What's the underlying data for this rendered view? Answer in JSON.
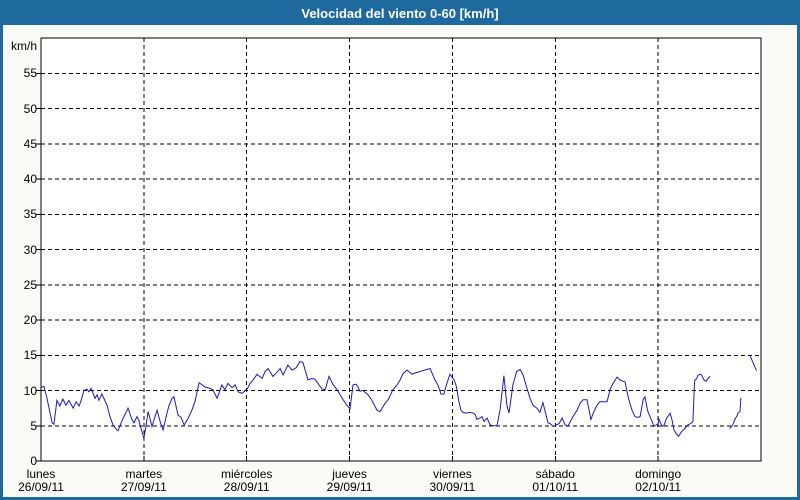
{
  "window": {
    "title": "Velocidad del viento 0-60 [km/h]",
    "title_bar_color": "#1e699e",
    "border_color": "#1e699e",
    "background_color": "#fafbf7"
  },
  "chart_data": {
    "type": "line",
    "title": "Velocidad del viento 0-60 [km/h]",
    "grid": "dashed",
    "legend": "none",
    "plot_background": "#ffffff",
    "grid_color": "#000000",
    "line_color": "#1b1abe",
    "y_axis": {
      "unit_label": "km/h",
      "min": 0,
      "max": 60,
      "tick_step": 5,
      "tick_labels": [
        0,
        5,
        10,
        15,
        20,
        25,
        30,
        35,
        40,
        45,
        50,
        55
      ]
    },
    "x_axis": {
      "range_hours": [
        0,
        168
      ],
      "days": [
        {
          "name": "lunes",
          "date": "26/09/11"
        },
        {
          "name": "martes",
          "date": "27/09/11"
        },
        {
          "name": "miércoles",
          "date": "28/09/11"
        },
        {
          "name": "jueves",
          "date": "29/09/11"
        },
        {
          "name": "viernes",
          "date": "30/09/11"
        },
        {
          "name": "sábado",
          "date": "01/10/11"
        },
        {
          "name": "domingo",
          "date": "02/10/11"
        }
      ]
    },
    "series": [
      {
        "name": "velocidad del viento",
        "points": [
          [
            0,
            10.4
          ],
          [
            0.7,
            10.6
          ],
          [
            1.4,
            8.9
          ],
          [
            2.6,
            5.4
          ],
          [
            3,
            5.2
          ],
          [
            3.7,
            8.6
          ],
          [
            4.4,
            7.8
          ],
          [
            5.1,
            8.8
          ],
          [
            5.8,
            7.9
          ],
          [
            6.5,
            8.6
          ],
          [
            7.5,
            7.5
          ],
          [
            8.2,
            8.4
          ],
          [
            8.9,
            7.8
          ],
          [
            9.3,
            8.5
          ],
          [
            10,
            10
          ],
          [
            10.7,
            10.2
          ],
          [
            11.2,
            9.8
          ],
          [
            11.7,
            10.3
          ],
          [
            12.6,
            8.9
          ],
          [
            13.1,
            9.4
          ],
          [
            13.5,
            8.6
          ],
          [
            14.2,
            9.5
          ],
          [
            15.4,
            7.9
          ],
          [
            16.1,
            6.3
          ],
          [
            16.8,
            5.1
          ],
          [
            17.7,
            4.4
          ],
          [
            18,
            4.3
          ],
          [
            18.7,
            5.4
          ],
          [
            19.1,
            6
          ],
          [
            20.1,
            7.2
          ],
          [
            20.3,
            7.5
          ],
          [
            21.2,
            5.9
          ],
          [
            21.7,
            5.4
          ],
          [
            22.4,
            6.3
          ],
          [
            22.9,
            5.7
          ],
          [
            23.1,
            5.1
          ],
          [
            24,
            3.2
          ],
          [
            24.5,
            5
          ],
          [
            25,
            7
          ],
          [
            25.7,
            5.4
          ],
          [
            25.9,
            4.9
          ],
          [
            26.6,
            6.3
          ],
          [
            27.1,
            7.2
          ],
          [
            27.8,
            5.6
          ],
          [
            28.5,
            4.4
          ],
          [
            29.4,
            6.8
          ],
          [
            29.9,
            7.9
          ],
          [
            30.6,
            8.9
          ],
          [
            31,
            9.1
          ],
          [
            32,
            6.5
          ],
          [
            32.7,
            6.2
          ],
          [
            33.4,
            5.1
          ],
          [
            34.3,
            6
          ],
          [
            35.2,
            7.2
          ],
          [
            35.9,
            8.4
          ],
          [
            36.9,
            11.1
          ],
          [
            38.3,
            10.5
          ],
          [
            39.4,
            10.3
          ],
          [
            40.1,
            10.1
          ],
          [
            41.1,
            8.9
          ],
          [
            42.2,
            10.8
          ],
          [
            42.9,
            10.1
          ],
          [
            43.6,
            11
          ],
          [
            44.6,
            10.4
          ],
          [
            45.3,
            10.8
          ],
          [
            46,
            9.8
          ],
          [
            46.9,
            9.6
          ],
          [
            48.1,
            10.2
          ],
          [
            48.8,
            11
          ],
          [
            49.5,
            11.5
          ],
          [
            50.4,
            12.3
          ],
          [
            51.6,
            11.7
          ],
          [
            52.3,
            12.7
          ],
          [
            53,
            13.1
          ],
          [
            54.1,
            12
          ],
          [
            55.1,
            12.6
          ],
          [
            55.8,
            13.1
          ],
          [
            56.5,
            12.2
          ],
          [
            57.6,
            13.6
          ],
          [
            58.6,
            12.9
          ],
          [
            59.5,
            13.2
          ],
          [
            60.4,
            14.1
          ],
          [
            61.1,
            14
          ],
          [
            62.3,
            11.5
          ],
          [
            63.2,
            11.7
          ],
          [
            63.9,
            11.6
          ],
          [
            64.6,
            11
          ],
          [
            65.6,
            10.2
          ],
          [
            66.3,
            10.1
          ],
          [
            67.2,
            12
          ],
          [
            68.1,
            10.9
          ],
          [
            69.1,
            10.1
          ],
          [
            69.8,
            9.4
          ],
          [
            70.5,
            8.7
          ],
          [
            71.4,
            7.9
          ],
          [
            72.1,
            7.4
          ],
          [
            72.8,
            10.8
          ],
          [
            73.5,
            10.9
          ],
          [
            74,
            10.5
          ],
          [
            74.4,
            9.9
          ],
          [
            75.1,
            10
          ],
          [
            76.3,
            9.4
          ],
          [
            77.2,
            8.6
          ],
          [
            78.4,
            7.2
          ],
          [
            79.1,
            7
          ],
          [
            80.3,
            8.2
          ],
          [
            81,
            8.7
          ],
          [
            82.1,
            10.1
          ],
          [
            83.1,
            10.8
          ],
          [
            83.8,
            11.5
          ],
          [
            84.5,
            12.4
          ],
          [
            85.4,
            12.9
          ],
          [
            86.6,
            12.3
          ],
          [
            87.3,
            12.5
          ],
          [
            88,
            12.6
          ],
          [
            88.9,
            12.8
          ],
          [
            90.1,
            13
          ],
          [
            90.8,
            13.1
          ],
          [
            91.9,
            11.5
          ],
          [
            92.6,
            10.8
          ],
          [
            93.3,
            9.5
          ],
          [
            94,
            9.5
          ],
          [
            94.7,
            11
          ],
          [
            95.4,
            12.3
          ],
          [
            96.4,
            11.5
          ],
          [
            96.8,
            10.8
          ],
          [
            97,
            10.3
          ],
          [
            97.5,
            8.4
          ],
          [
            98,
            7.2
          ],
          [
            98.5,
            6.9
          ],
          [
            99.2,
            6.8
          ],
          [
            100.1,
            6.9
          ],
          [
            100.8,
            6.8
          ],
          [
            101.3,
            6.6
          ],
          [
            101.7,
            5.9
          ],
          [
            102.4,
            6.1
          ],
          [
            102.9,
            6.3
          ],
          [
            103.4,
            5.6
          ],
          [
            104.1,
            6.1
          ],
          [
            104.8,
            5.1
          ],
          [
            105.5,
            5
          ],
          [
            106.4,
            5
          ],
          [
            107.1,
            7.2
          ],
          [
            108,
            12.1
          ],
          [
            108.7,
            7.9
          ],
          [
            109.2,
            6.8
          ],
          [
            110.1,
            10.8
          ],
          [
            111,
            12.7
          ],
          [
            111.8,
            13
          ],
          [
            112.5,
            12.2
          ],
          [
            112.9,
            11.3
          ],
          [
            113.4,
            10.3
          ],
          [
            114.1,
            8.9
          ],
          [
            114.8,
            7.9
          ],
          [
            115.7,
            7.5
          ],
          [
            116.4,
            6.9
          ],
          [
            117.1,
            8.3
          ],
          [
            117.8,
            6.6
          ],
          [
            118.3,
            5.4
          ],
          [
            118.8,
            5.3
          ],
          [
            119.5,
            4.9
          ],
          [
            120.2,
            5.1
          ],
          [
            120.9,
            5.3
          ],
          [
            121.6,
            6.1
          ],
          [
            122.3,
            5.1
          ],
          [
            123,
            5
          ],
          [
            124.1,
            6.3
          ],
          [
            125.1,
            7.2
          ],
          [
            125.8,
            8.2
          ],
          [
            126.5,
            8.7
          ],
          [
            127.4,
            8.7
          ],
          [
            128.3,
            5.9
          ],
          [
            129,
            7
          ],
          [
            129.7,
            7.9
          ],
          [
            130.4,
            8.4
          ],
          [
            131.4,
            8.4
          ],
          [
            132.1,
            8.4
          ],
          [
            132.8,
            10.2
          ],
          [
            133.5,
            11
          ],
          [
            134.4,
            11.9
          ],
          [
            135.1,
            11.5
          ],
          [
            135.8,
            11.3
          ],
          [
            136.3,
            11.2
          ],
          [
            137,
            9.1
          ],
          [
            137.4,
            8.2
          ],
          [
            137.9,
            7.2
          ],
          [
            138.6,
            6.3
          ],
          [
            139.3,
            6.2
          ],
          [
            139.8,
            6.3
          ],
          [
            140.5,
            8.7
          ],
          [
            140.9,
            9.1
          ],
          [
            141.6,
            7
          ],
          [
            142.1,
            6.3
          ],
          [
            142.6,
            5.6
          ],
          [
            143,
            4.9
          ],
          [
            144,
            5.3
          ],
          [
            144.2,
            5.9
          ],
          [
            144.9,
            4.9
          ],
          [
            145.4,
            5.1
          ],
          [
            146,
            6.1
          ],
          [
            146.5,
            6.5
          ],
          [
            146.8,
            6.8
          ],
          [
            147.2,
            5.9
          ],
          [
            147.7,
            4.4
          ],
          [
            148.4,
            3.7
          ],
          [
            148.8,
            3.5
          ],
          [
            149.5,
            4.2
          ],
          [
            150.2,
            4.6
          ],
          [
            150.9,
            5.1
          ],
          [
            151.6,
            5.3
          ],
          [
            152.1,
            5.6
          ],
          [
            152.5,
            11.4
          ],
          [
            153,
            11.7
          ],
          [
            153.3,
            12.2
          ],
          [
            154,
            12.3
          ],
          [
            154.7,
            11.5
          ],
          [
            155.2,
            11.3
          ],
          [
            155.6,
            11.7
          ],
          [
            156.1,
            12
          ],
          null,
          [
            160.7,
            4.6
          ],
          [
            161.4,
            5.1
          ],
          [
            161.9,
            5.9
          ],
          [
            162.4,
            6.4
          ],
          [
            162.6,
            6.8
          ],
          [
            163.1,
            7
          ],
          [
            163.3,
            9
          ],
          null,
          [
            165.4,
            15
          ],
          [
            166.1,
            14
          ],
          [
            166.8,
            13
          ],
          [
            167,
            12.9
          ]
        ]
      }
    ]
  }
}
